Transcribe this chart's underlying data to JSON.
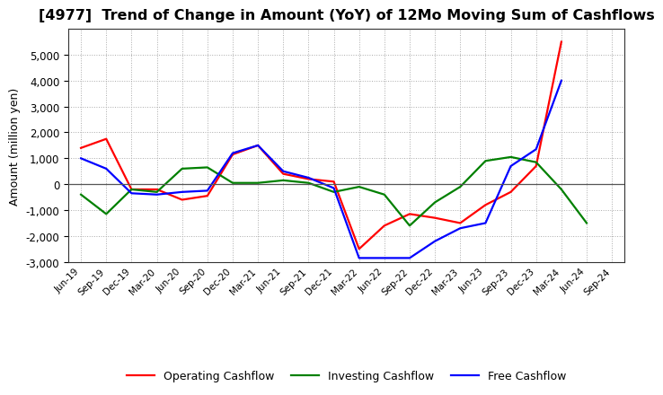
{
  "title": "[4977]  Trend of Change in Amount (YoY) of 12Mo Moving Sum of Cashflows",
  "ylabel": "Amount (million yen)",
  "x_labels": [
    "Jun-19",
    "Sep-19",
    "Dec-19",
    "Mar-20",
    "Jun-20",
    "Sep-20",
    "Dec-20",
    "Mar-21",
    "Jun-21",
    "Sep-21",
    "Dec-21",
    "Mar-22",
    "Jun-22",
    "Sep-22",
    "Dec-22",
    "Mar-23",
    "Jun-23",
    "Sep-23",
    "Dec-23",
    "Mar-24",
    "Jun-24",
    "Sep-24"
  ],
  "operating": [
    1400,
    1750,
    -200,
    -200,
    -600,
    -450,
    1150,
    1500,
    400,
    200,
    100,
    -2500,
    -1600,
    -1150,
    -1300,
    -1500,
    -800,
    -300,
    700,
    5500,
    null,
    null
  ],
  "investing": [
    -400,
    -1150,
    -200,
    -300,
    600,
    650,
    50,
    50,
    150,
    50,
    -300,
    -100,
    -400,
    -1600,
    -700,
    -100,
    900,
    1050,
    850,
    -200,
    -1500,
    null
  ],
  "free": [
    1000,
    600,
    -350,
    -400,
    -300,
    -250,
    1200,
    1500,
    500,
    250,
    -150,
    -2850,
    -2850,
    -2850,
    -2200,
    -1700,
    -1500,
    700,
    1350,
    4000,
    null,
    null
  ],
  "operating_color": "#ff0000",
  "investing_color": "#008000",
  "free_color": "#0000ff",
  "ylim": [
    -3000,
    6000
  ],
  "yticks": [
    -3000,
    -2000,
    -1000,
    0,
    1000,
    2000,
    3000,
    4000,
    5000
  ],
  "background_color": "#ffffff",
  "grid_color": "#aaaaaa",
  "title_fontsize": 11.5,
  "label_fontsize": 9
}
